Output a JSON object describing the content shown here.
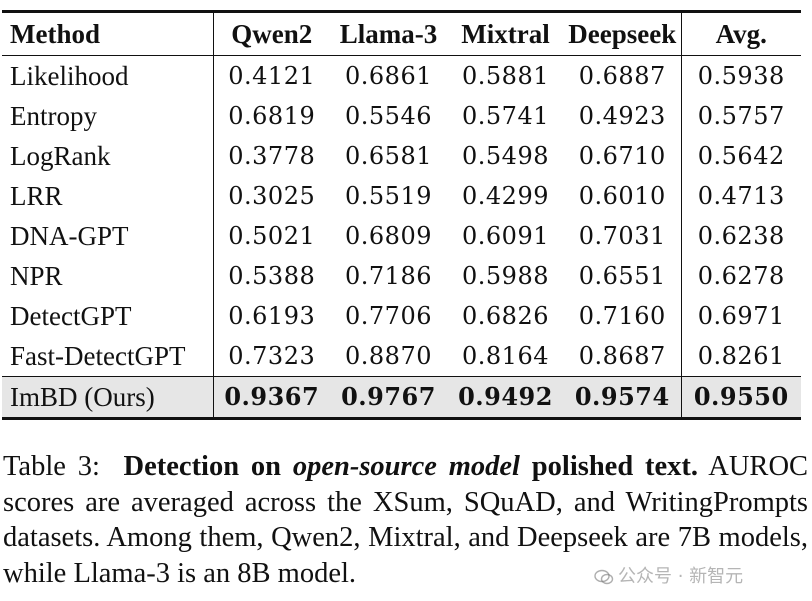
{
  "table": {
    "columns": [
      "Method",
      "Qwen2",
      "Llama-3",
      "Mixtral",
      "Deepseek",
      "Avg."
    ],
    "rows": [
      [
        "Likelihood",
        "0.4121",
        "0.6861",
        "0.5881",
        "0.6887",
        "0.5938"
      ],
      [
        "Entropy",
        "0.6819",
        "0.5546",
        "0.5741",
        "0.4923",
        "0.5757"
      ],
      [
        "LogRank",
        "0.3778",
        "0.6581",
        "0.5498",
        "0.6710",
        "0.5642"
      ],
      [
        "LRR",
        "0.3025",
        "0.5519",
        "0.4299",
        "0.6010",
        "0.4713"
      ],
      [
        "DNA-GPT",
        "0.5021",
        "0.6809",
        "0.6091",
        "0.7031",
        "0.6238"
      ],
      [
        "NPR",
        "0.5388",
        "0.7186",
        "0.5988",
        "0.6551",
        "0.6278"
      ],
      [
        "DetectGPT",
        "0.6193",
        "0.7706",
        "0.6826",
        "0.7160",
        "0.6971"
      ],
      [
        "Fast-DetectGPT",
        "0.7323",
        "0.8870",
        "0.8164",
        "0.8687",
        "0.8261"
      ],
      [
        "ImBD (Ours)",
        "0.9367",
        "0.9767",
        "0.9492",
        "0.9574",
        "0.9550"
      ]
    ]
  },
  "caption": {
    "label": "Table 3:",
    "bold_a": "Detection on",
    "bold_italic": "open-source model",
    "bold_b": "polished text.",
    "body": "AUROC scores are averaged across the XSum, SQuAD, and WritingPrompts datasets. Among them, Qwen2, Mixtral, and Deepseek are 7B models, while Llama-3 is an 8B model."
  },
  "watermark": "公众号 · 新智元"
}
